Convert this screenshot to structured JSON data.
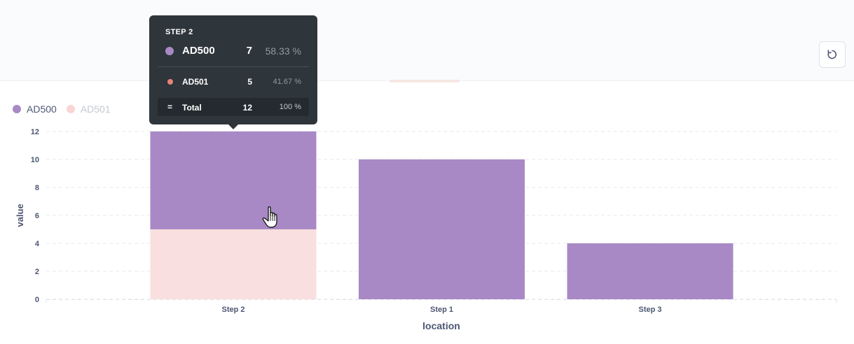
{
  "legend": [
    {
      "name": "AD500",
      "color": "#a989c5",
      "active": true
    },
    {
      "name": "AD501",
      "color": "#f9d5d5",
      "active": false
    }
  ],
  "chart_data": {
    "type": "bar",
    "stacked": true,
    "categories": [
      "Step 2",
      "Step 1",
      "Step 3"
    ],
    "series": [
      {
        "name": "AD501",
        "color": "#f9dfdf",
        "values": [
          5,
          0,
          0
        ]
      },
      {
        "name": "AD500",
        "color": "#a889c5",
        "values": [
          7,
          10,
          4
        ]
      }
    ],
    "xlabel": "location",
    "ylabel": "value",
    "ylim": [
      0,
      12
    ],
    "yticks": [
      0,
      2,
      4,
      6,
      8,
      10,
      12
    ],
    "grid": true,
    "legend_position": "top-left"
  },
  "tooltip": {
    "title": "STEP 2",
    "rows": [
      {
        "name": "AD500",
        "value": "7",
        "percent": "58.33 %",
        "color": "#a989c5"
      },
      {
        "name": "AD501",
        "value": "5",
        "percent": "41.67 %",
        "color": "#e8837a"
      }
    ],
    "total": {
      "symbol": "=",
      "label": "Total",
      "value": "12",
      "percent": "100 %"
    }
  },
  "toolbar": {
    "refresh_icon": "refresh-icon"
  },
  "cursor_icon": "hand-pointer-icon"
}
